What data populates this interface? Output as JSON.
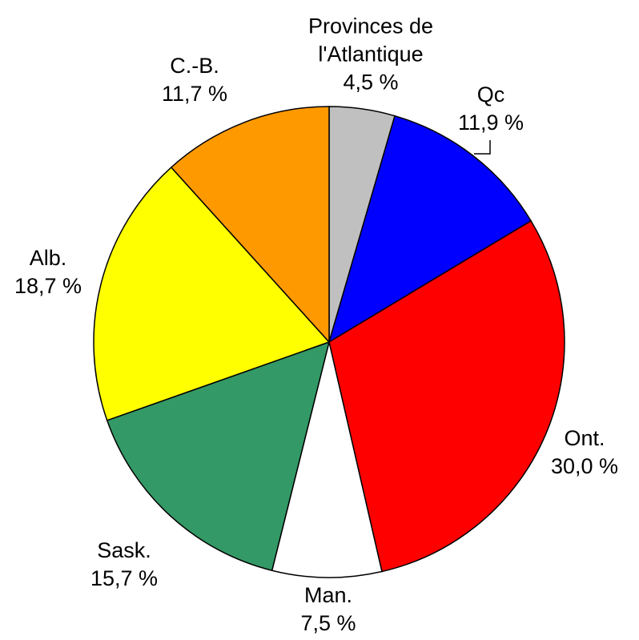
{
  "chart_data": {
    "type": "pie",
    "categories": [
      "Provinces de l'Atlantique",
      "Qc",
      "Ont.",
      "Man.",
      "Sask.",
      "Alb.",
      "C.-B."
    ],
    "values": [
      4.5,
      11.9,
      30.0,
      7.5,
      15.7,
      18.7,
      11.7
    ],
    "value_labels": [
      "4,5 %",
      "11,9 %",
      "30,0 %",
      "7,5 %",
      "15,7 %",
      "18,7 %",
      "11,7 %"
    ],
    "colors": [
      "#c0c0c0",
      "#0000ff",
      "#ff0000",
      "#ffffff",
      "#339966",
      "#ffff00",
      "#ff9900"
    ]
  }
}
